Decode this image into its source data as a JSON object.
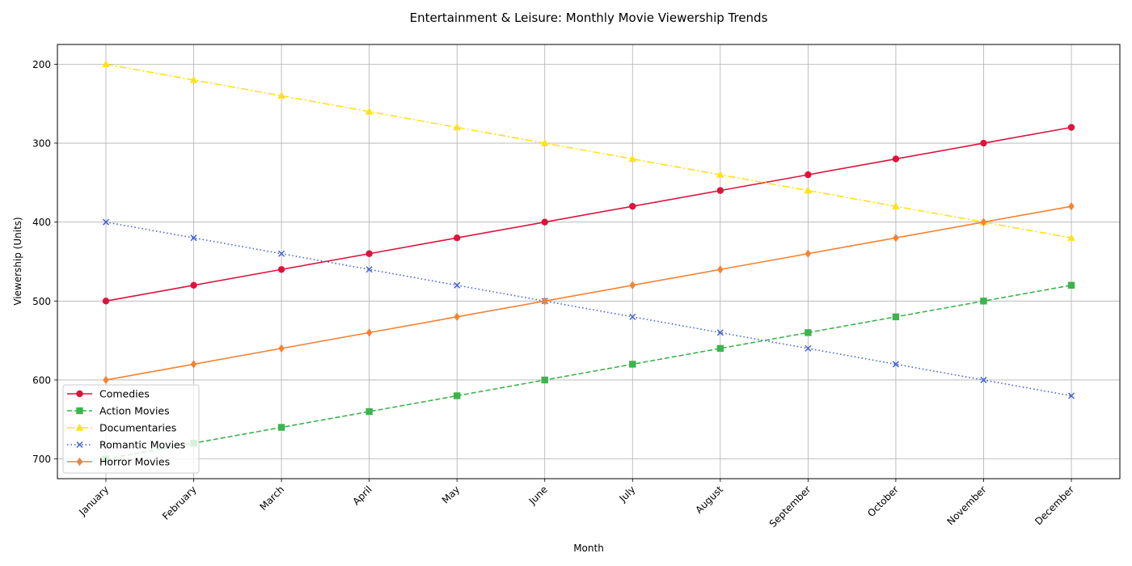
{
  "chart_data": {
    "type": "line",
    "title": "Entertainment & Leisure: Monthly Movie Viewership Trends",
    "xlabel": "Month",
    "ylabel": "Viewership (Units)",
    "categories": [
      "January",
      "February",
      "March",
      "April",
      "May",
      "June",
      "July",
      "August",
      "September",
      "October",
      "November",
      "December"
    ],
    "yticks": [
      200,
      300,
      400,
      500,
      600,
      700
    ],
    "ylim": [
      175,
      725
    ],
    "y_inverted": true,
    "grid": true,
    "legend_position": "bottom-left",
    "series": [
      {
        "name": "Comedies",
        "color": "#dc143c",
        "marker": "circle",
        "linestyle": "solid",
        "values": [
          500,
          480,
          460,
          440,
          420,
          400,
          380,
          360,
          340,
          320,
          300,
          280
        ]
      },
      {
        "name": "Action Movies",
        "color": "#3cb44b",
        "marker": "square",
        "linestyle": "dashed",
        "values": [
          700,
          680,
          660,
          640,
          620,
          600,
          580,
          560,
          540,
          520,
          500,
          480
        ]
      },
      {
        "name": "Documentaries",
        "color": "#ffe119",
        "marker": "triangle",
        "linestyle": "dashdot",
        "values": [
          200,
          220,
          240,
          260,
          280,
          300,
          320,
          340,
          360,
          380,
          400,
          420
        ]
      },
      {
        "name": "Romantic Movies",
        "color": "#4363d8",
        "marker": "x",
        "linestyle": "dotted",
        "values": [
          400,
          420,
          440,
          460,
          480,
          500,
          520,
          540,
          560,
          580,
          600,
          620
        ]
      },
      {
        "name": "Horror Movies",
        "color": "#f58231",
        "marker": "diamond",
        "linestyle": "solid",
        "values": [
          600,
          580,
          560,
          540,
          520,
          500,
          480,
          460,
          440,
          420,
          400,
          380
        ]
      }
    ]
  }
}
